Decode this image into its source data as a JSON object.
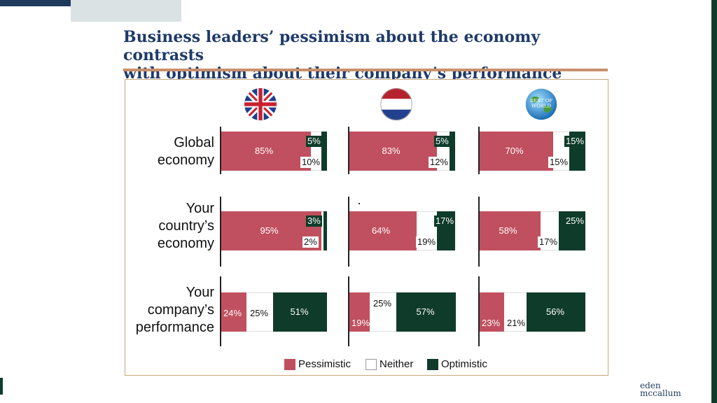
{
  "title": {
    "line1": "Business leaders’ pessimism about the economy contrasts",
    "line2": "with optimism about their company’s performance"
  },
  "colors": {
    "pessimistic": "#c0505f",
    "neither": "#ffffff",
    "optimistic": "#0f3b2a",
    "title": "#1e3a6a",
    "rule": "#c9906c"
  },
  "flags": [
    {
      "icon": "uk-flag-icon"
    },
    {
      "icon": "netherlands-flag-icon"
    },
    {
      "icon": "rest-of-world-globe-icon",
      "label": "REST OF WORLD"
    }
  ],
  "rows": [
    {
      "label": [
        "Global",
        "economy"
      ]
    },
    {
      "label": [
        "Your",
        "country’s",
        "economy"
      ]
    },
    {
      "label": [
        "Your",
        "company’s",
        "performance"
      ]
    }
  ],
  "legend": [
    {
      "label": "Pessimistic",
      "color": "#c0505f"
    },
    {
      "label": "Neither",
      "color": "#ffffff"
    },
    {
      "label": "Optimistic",
      "color": "#0f3b2a"
    }
  ],
  "logo": {
    "line1": "eden",
    "line2": "mccallum"
  },
  "chart_data": {
    "type": "bar",
    "stacked": true,
    "orientation": "horizontal",
    "categories": [
      "Global economy",
      "Your country’s economy",
      "Your company’s performance"
    ],
    "groups": [
      "UK",
      "Netherlands",
      "REST OF WORLD"
    ],
    "series": [
      {
        "name": "Pessimistic",
        "values": [
          [
            85,
            83,
            70
          ],
          [
            95,
            64,
            58
          ],
          [
            24,
            19,
            23
          ]
        ]
      },
      {
        "name": "Neither",
        "values": [
          [
            10,
            12,
            15
          ],
          [
            2,
            19,
            17
          ],
          [
            25,
            25,
            21
          ]
        ]
      },
      {
        "name": "Optimistic",
        "values": [
          [
            5,
            5,
            15
          ],
          [
            3,
            17,
            25
          ],
          [
            51,
            57,
            56
          ]
        ]
      }
    ],
    "value_format": "percent",
    "legend_position": "bottom"
  }
}
